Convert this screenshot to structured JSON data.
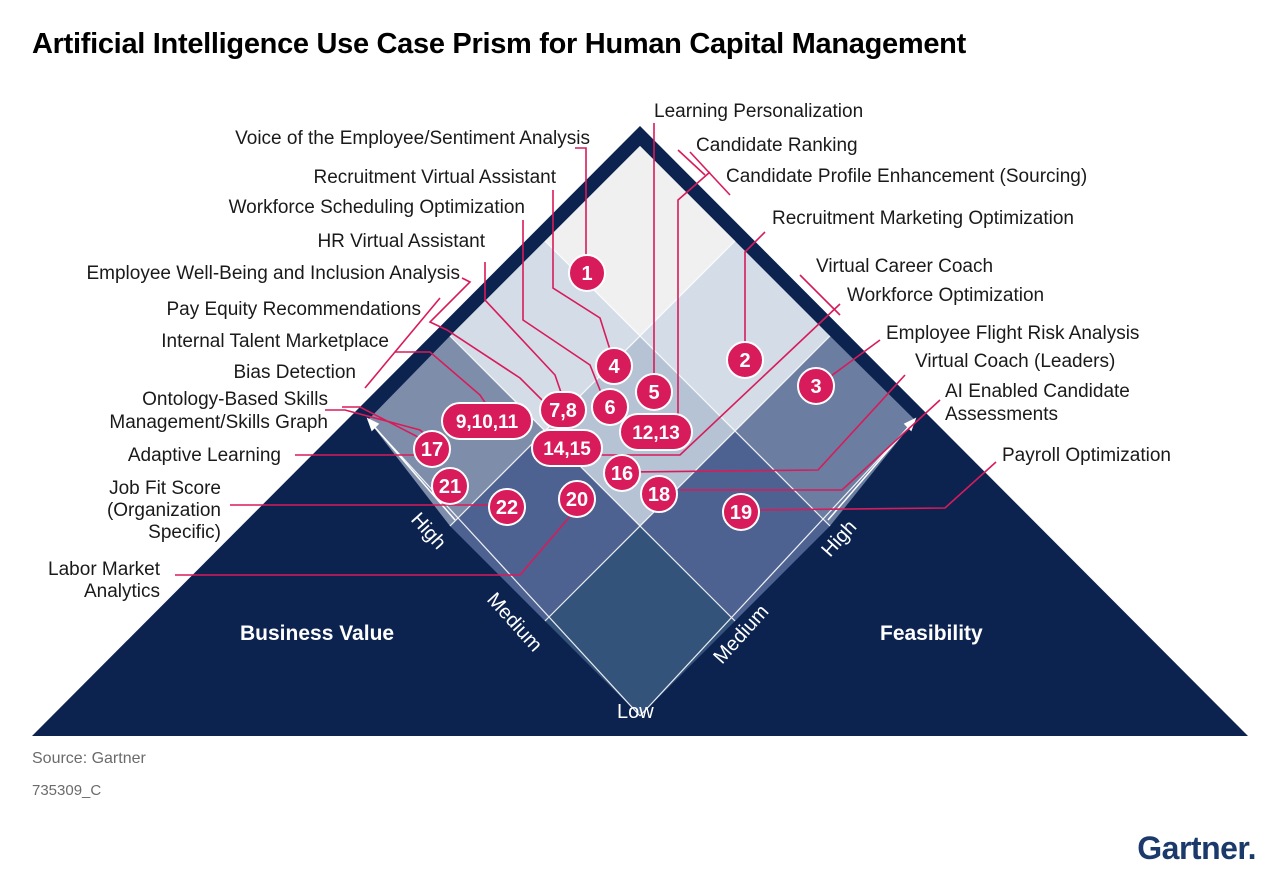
{
  "title": "Artificial Intelligence Use Case Prism for Human Capital Management",
  "dimensions": {
    "left": "Business Value",
    "right": "Feasibility"
  },
  "axis_levels": {
    "high": "High",
    "medium": "Medium",
    "low": "Low"
  },
  "use_cases": [
    "Voice of the Employee/Sentiment Analysis",
    "Recruitment Virtual Assistant",
    "Workforce Scheduling Optimization",
    "HR Virtual Assistant",
    "Employee Well-Being and Inclusion Analysis",
    "Pay Equity Recommendations",
    "Internal Talent Marketplace",
    "Bias Detection",
    "Ontology-Based Skills Management/Skills Graph",
    "Adaptive Learning",
    "Job Fit Score (Organization Specific)",
    "Labor Market Analytics",
    "Learning Personalization",
    "Candidate Ranking",
    "Candidate Profile Enhancement (Sourcing)",
    "Recruitment Marketing Optimization",
    "Virtual Career Coach",
    "Workforce Optimization",
    "Employee Flight Risk Analysis",
    "Virtual Coach (Leaders)",
    "AI Enabled Candidate Assessments",
    "Payroll Optimization"
  ],
  "label_lines": {
    "ontology_1": "Ontology-Based Skills",
    "ontology_2": "Management/Skills Graph",
    "jobfit_1": "Job Fit Score",
    "jobfit_2": "(Organization",
    "jobfit_3": "Specific)",
    "labor_1": "Labor Market",
    "labor_2": "Analytics",
    "ai_1": "AI Enabled Candidate",
    "ai_2": "Assessments"
  },
  "badges": [
    "1",
    "2",
    "3",
    "4",
    "5",
    "6",
    "7,8",
    "9,10,11",
    "12,13",
    "14,15",
    "16",
    "17",
    "18",
    "19",
    "20",
    "21",
    "22"
  ],
  "colors": {
    "navy": "#0c2350",
    "accent": "#d81b5a",
    "grid": "#ffffff"
  },
  "footer": {
    "source": "Source: Gartner",
    "id": "735309_C",
    "brand": "Gartner"
  }
}
